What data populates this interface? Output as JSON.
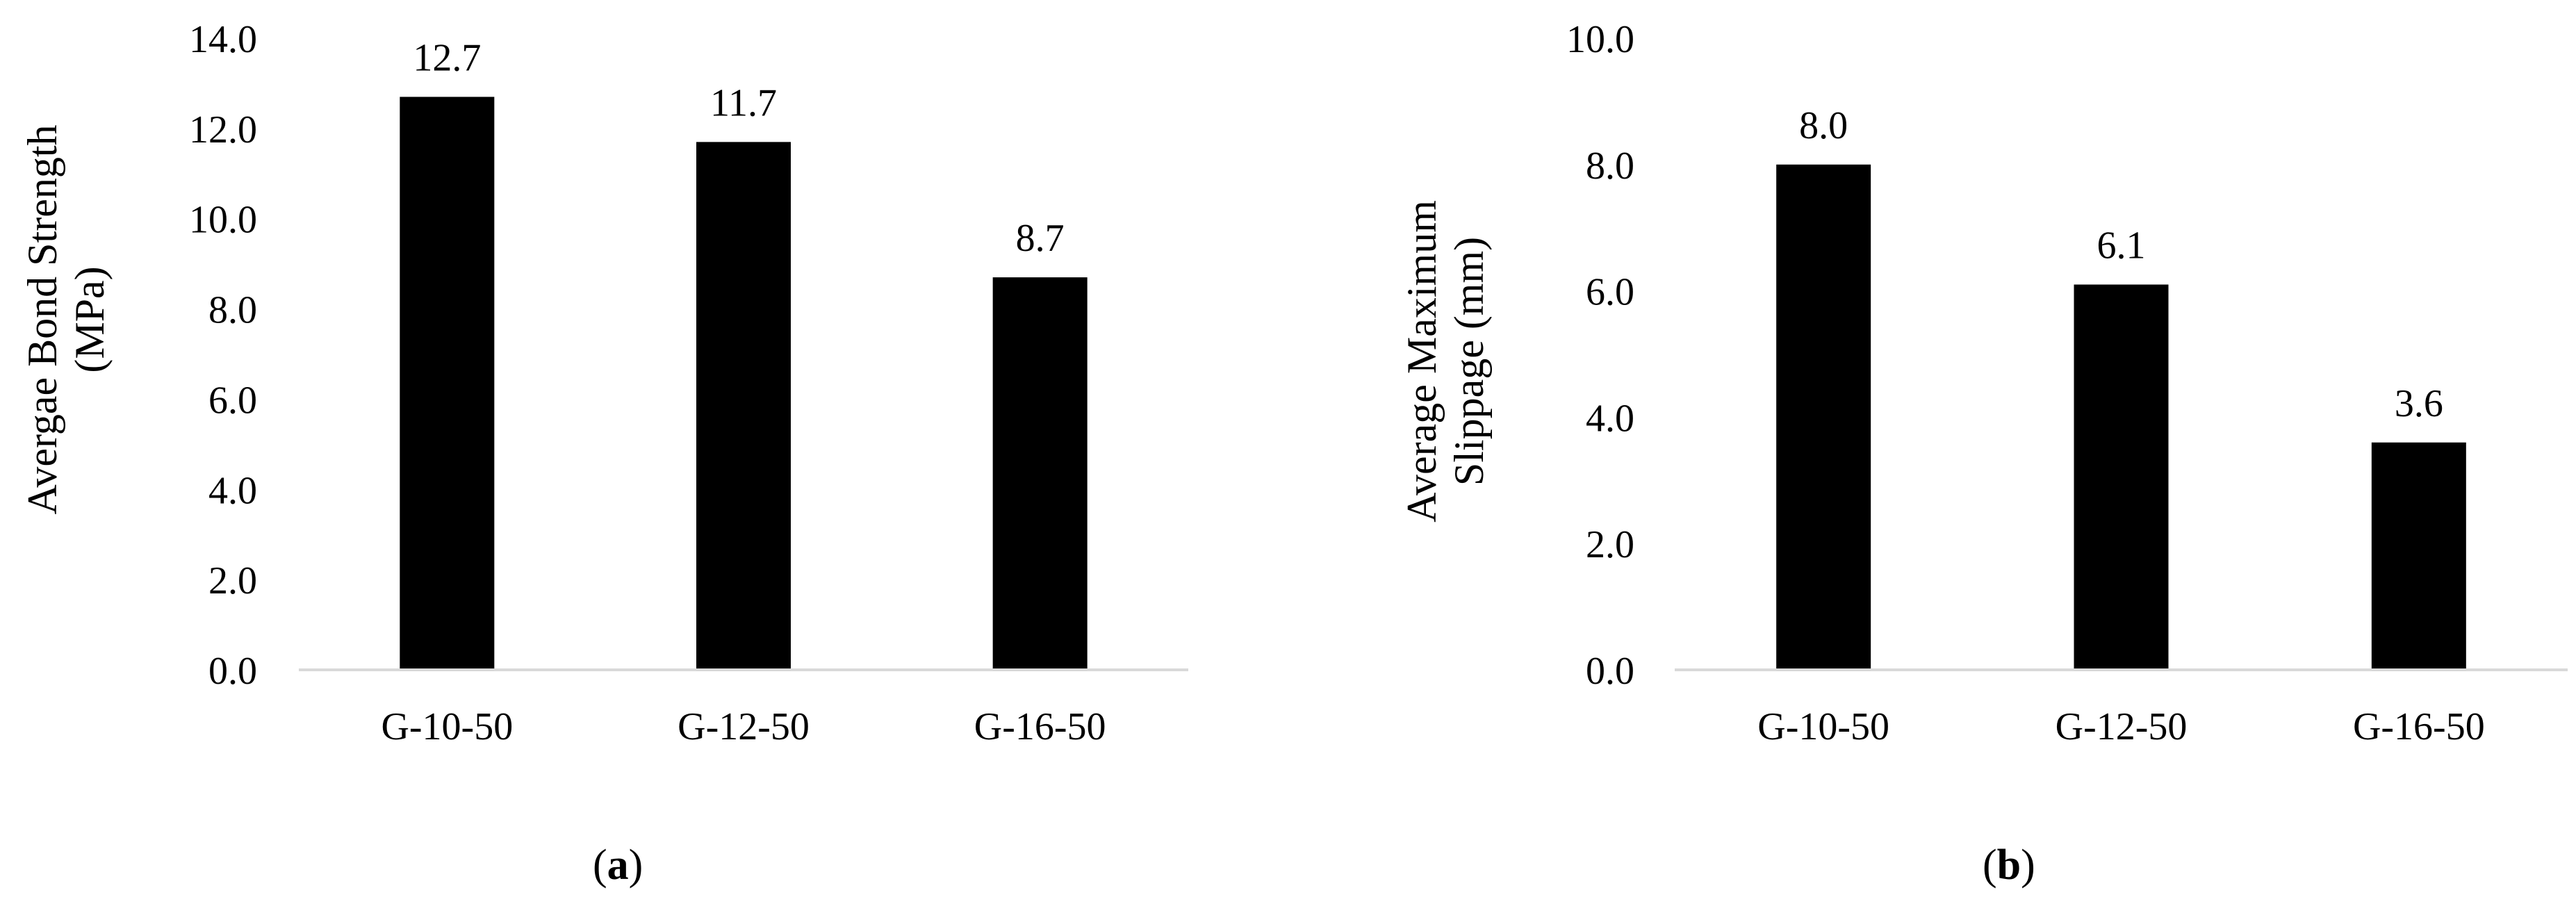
{
  "chart_data": [
    {
      "type": "bar",
      "panel_label": "a",
      "categories": [
        "G-10-50",
        "G-12-50",
        "G-16-50"
      ],
      "values": [
        12.7,
        11.7,
        8.7
      ],
      "value_labels": [
        "12.7",
        "11.7",
        "8.7"
      ],
      "title": "",
      "xlabel": "",
      "ylabel": [
        "Avergae Bond Strength",
        "(MPa)"
      ],
      "ylim": [
        0,
        14
      ],
      "yticks": [
        "0.0",
        "2.0",
        "4.0",
        "6.0",
        "8.0",
        "10.0",
        "12.0",
        "14.0"
      ],
      "grid": false,
      "legend": "none",
      "bar_color": "#000000",
      "axis_color": "#d9d9d9"
    },
    {
      "type": "bar",
      "panel_label": "b",
      "categories": [
        "G-10-50",
        "G-12-50",
        "G-16-50"
      ],
      "values": [
        8.0,
        6.1,
        3.6
      ],
      "value_labels": [
        "8.0",
        "6.1",
        "3.6"
      ],
      "title": "",
      "xlabel": "",
      "ylabel": [
        "Average Maximum",
        "Slippage (mm)"
      ],
      "ylim": [
        0,
        10
      ],
      "yticks": [
        "0.0",
        "2.0",
        "4.0",
        "6.0",
        "8.0",
        "10.0"
      ],
      "grid": false,
      "legend": "none",
      "bar_color": "#000000",
      "axis_color": "#d9d9d9"
    }
  ]
}
